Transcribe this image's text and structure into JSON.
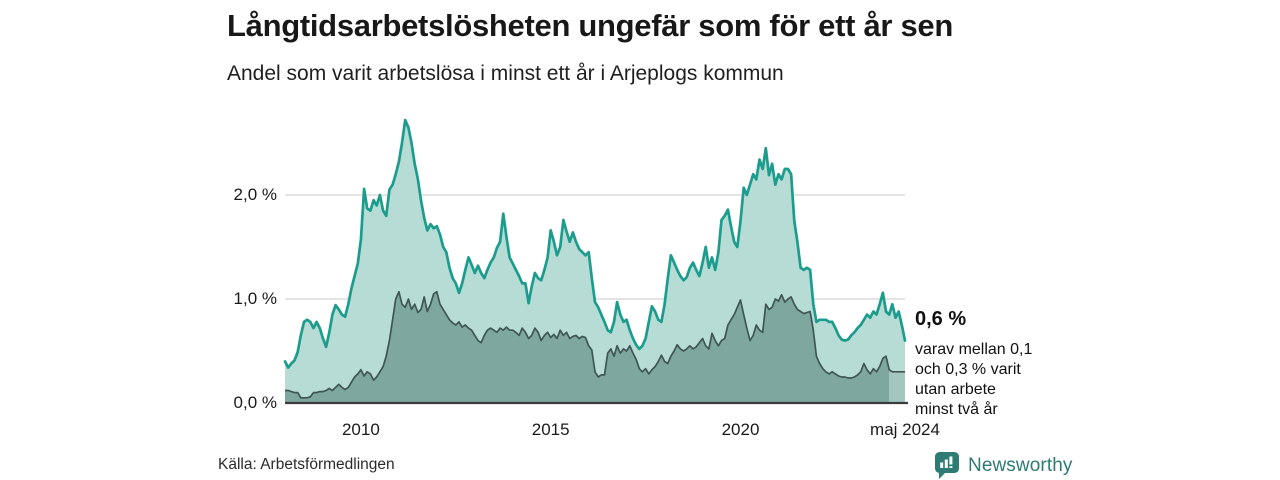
{
  "title": "Långtidsarbetslösheten ungefär som för ett år sen",
  "subtitle": "Andel som varit arbetslösa i minst ett år i Arjeplogs kommun",
  "source": "Källa: Arbetsförmedlingen",
  "brand": {
    "name": "Newsworthy"
  },
  "annotation": {
    "value_label": "0,6 %",
    "lines": [
      "varav mellan 0,1",
      "och 0,3 % varit",
      "utan arbete",
      "minst två år"
    ]
  },
  "chart_data": {
    "type": "area",
    "frequency": "monthly",
    "x_start": "2008-01",
    "x_end": "2024-05",
    "x_ticks": [
      "2010",
      "2015",
      "2020",
      "maj 2024"
    ],
    "x_tick_indices": [
      24,
      84,
      144,
      196
    ],
    "y_ticks": [
      "0,0 %",
      "1,0 %",
      "2,0 %"
    ],
    "y_tick_values": [
      0,
      1,
      2
    ],
    "ylim": [
      0,
      2.9
    ],
    "grid": true,
    "legend_position": "none",
    "colors": {
      "line_1yr": "#1b9c8c",
      "fill_1yr": "#b7dcd6",
      "line_2yr": "#3f5653",
      "fill_2yr": "#7ea7a0",
      "fill_2yr_uncertain": "#a4c6c0",
      "gridline": "#dcdcdc",
      "axis": "#3b3b3b"
    },
    "series": [
      {
        "name": "Andel arbetslösa minst ett år",
        "values": [
          0.4,
          0.34,
          0.38,
          0.41,
          0.49,
          0.65,
          0.78,
          0.8,
          0.78,
          0.72,
          0.78,
          0.72,
          0.62,
          0.54,
          0.68,
          0.85,
          0.94,
          0.9,
          0.85,
          0.83,
          0.95,
          1.1,
          1.22,
          1.34,
          1.57,
          2.06,
          1.87,
          1.85,
          1.95,
          1.9,
          2.0,
          1.85,
          1.8,
          2.05,
          2.1,
          2.2,
          2.32,
          2.5,
          2.72,
          2.65,
          2.5,
          2.3,
          2.15,
          1.95,
          1.78,
          1.66,
          1.72,
          1.68,
          1.7,
          1.62,
          1.5,
          1.45,
          1.3,
          1.2,
          1.15,
          1.06,
          1.15,
          1.28,
          1.4,
          1.33,
          1.25,
          1.32,
          1.25,
          1.2,
          1.28,
          1.35,
          1.4,
          1.49,
          1.55,
          1.82,
          1.6,
          1.4,
          1.34,
          1.28,
          1.22,
          1.15,
          1.15,
          0.96,
          1.12,
          1.25,
          1.2,
          1.18,
          1.28,
          1.4,
          1.66,
          1.55,
          1.42,
          1.5,
          1.76,
          1.65,
          1.55,
          1.64,
          1.55,
          1.48,
          1.45,
          1.42,
          1.45,
          1.2,
          0.97,
          0.92,
          0.85,
          0.78,
          0.7,
          0.68,
          0.78,
          0.97,
          0.85,
          0.78,
          0.8,
          0.7,
          0.62,
          0.56,
          0.52,
          0.55,
          0.62,
          0.78,
          0.93,
          0.88,
          0.8,
          0.78,
          0.95,
          1.2,
          1.42,
          1.35,
          1.28,
          1.22,
          1.18,
          1.21,
          1.3,
          1.35,
          1.28,
          1.22,
          1.35,
          1.5,
          1.3,
          1.4,
          1.28,
          1.45,
          1.76,
          1.8,
          1.86,
          1.7,
          1.55,
          1.5,
          1.75,
          2.07,
          2.0,
          2.1,
          2.2,
          2.15,
          2.34,
          2.25,
          2.45,
          2.19,
          2.3,
          2.1,
          2.2,
          2.15,
          2.25,
          2.25,
          2.2,
          1.75,
          1.55,
          1.3,
          1.28,
          1.3,
          1.28,
          0.95,
          0.78,
          0.8,
          0.8,
          0.8,
          0.78,
          0.78,
          0.72,
          0.65,
          0.61,
          0.6,
          0.61,
          0.65,
          0.68,
          0.72,
          0.75,
          0.8,
          0.85,
          0.82,
          0.88,
          0.85,
          0.95,
          1.06,
          0.88,
          0.85,
          0.95,
          0.82,
          0.88,
          0.75,
          0.6
        ],
        "last_value_label": "0,6 %"
      },
      {
        "name": "Andel utan arbete minst två år",
        "values": [
          0.12,
          0.12,
          0.11,
          0.1,
          0.1,
          0.05,
          0.05,
          0.05,
          0.06,
          0.1,
          0.1,
          0.11,
          0.11,
          0.12,
          0.14,
          0.12,
          0.15,
          0.18,
          0.15,
          0.13,
          0.15,
          0.2,
          0.25,
          0.28,
          0.32,
          0.26,
          0.3,
          0.28,
          0.22,
          0.25,
          0.3,
          0.35,
          0.45,
          0.6,
          0.8,
          1.0,
          1.07,
          0.95,
          0.92,
          1.0,
          0.9,
          0.95,
          0.87,
          0.9,
          1.02,
          0.88,
          0.95,
          1.05,
          1.07,
          0.95,
          0.9,
          0.85,
          0.8,
          0.77,
          0.75,
          0.78,
          0.73,
          0.75,
          0.72,
          0.7,
          0.65,
          0.6,
          0.58,
          0.65,
          0.7,
          0.72,
          0.7,
          0.68,
          0.72,
          0.7,
          0.73,
          0.7,
          0.7,
          0.68,
          0.65,
          0.72,
          0.68,
          0.62,
          0.65,
          0.72,
          0.68,
          0.6,
          0.65,
          0.68,
          0.63,
          0.66,
          0.62,
          0.7,
          0.65,
          0.68,
          0.62,
          0.64,
          0.65,
          0.62,
          0.64,
          0.63,
          0.55,
          0.51,
          0.3,
          0.25,
          0.27,
          0.27,
          0.48,
          0.52,
          0.45,
          0.55,
          0.48,
          0.52,
          0.5,
          0.55,
          0.48,
          0.42,
          0.33,
          0.3,
          0.33,
          0.28,
          0.32,
          0.35,
          0.4,
          0.46,
          0.4,
          0.38,
          0.45,
          0.5,
          0.56,
          0.52,
          0.5,
          0.52,
          0.55,
          0.52,
          0.54,
          0.58,
          0.62,
          0.55,
          0.52,
          0.67,
          0.6,
          0.55,
          0.6,
          0.62,
          0.75,
          0.8,
          0.85,
          0.92,
          0.99,
          0.85,
          0.72,
          0.6,
          0.65,
          0.75,
          0.7,
          0.68,
          0.95,
          0.9,
          0.92,
          1.0,
          0.98,
          1.04,
          0.97,
          1.0,
          1.02,
          0.95,
          0.9,
          0.88,
          0.86,
          0.87,
          0.88,
          0.7,
          0.45,
          0.38,
          0.33,
          0.3,
          0.28,
          0.3,
          0.28,
          0.26,
          0.25,
          0.25,
          0.24,
          0.24,
          0.25,
          0.27,
          0.3,
          0.38,
          0.32,
          0.28,
          0.33,
          0.3,
          0.35,
          0.43,
          0.45,
          0.32,
          0.3,
          0.3,
          0.3,
          0.3,
          0.3
        ],
        "uncertainty_from_index": 191,
        "uncertainty_range": [
          0.1,
          0.3
        ]
      }
    ]
  }
}
